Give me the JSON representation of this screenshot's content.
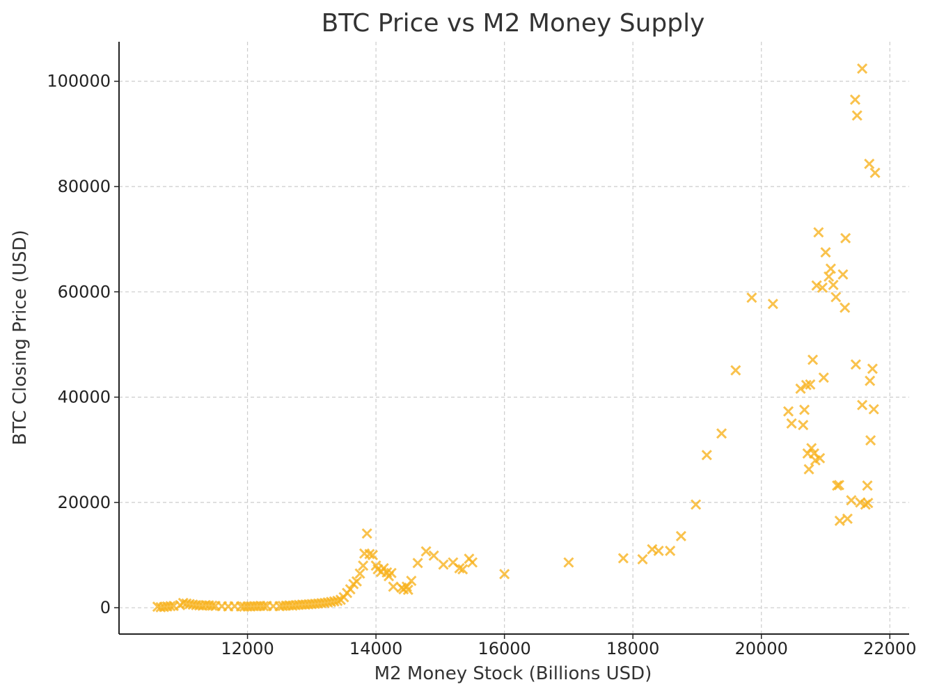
{
  "chart_data": {
    "type": "scatter",
    "title": "BTC Price vs M2 Money Supply",
    "xlabel": "M2 Money Stock (Billions USD)",
    "ylabel": "BTC Closing Price (USD)",
    "xlim": [
      10000,
      22300
    ],
    "ylim": [
      -5000,
      107500
    ],
    "xticks": [
      12000,
      14000,
      16000,
      18000,
      20000,
      22000
    ],
    "yticks": [
      0,
      20000,
      40000,
      60000,
      80000,
      100000
    ],
    "grid": true,
    "marker": "x",
    "color": "#f8b21c",
    "series": [
      {
        "points": [
          [
            10600,
            200
          ],
          [
            10650,
            100
          ],
          [
            10700,
            150
          ],
          [
            10750,
            250
          ],
          [
            10800,
            300
          ],
          [
            10850,
            350
          ],
          [
            10950,
            500
          ],
          [
            11000,
            900
          ],
          [
            11050,
            800
          ],
          [
            11100,
            700
          ],
          [
            11150,
            600
          ],
          [
            11200,
            500
          ],
          [
            11250,
            450
          ],
          [
            11300,
            400
          ],
          [
            11350,
            500
          ],
          [
            11400,
            450
          ],
          [
            11450,
            400
          ],
          [
            11500,
            350
          ],
          [
            11600,
            300
          ],
          [
            11700,
            250
          ],
          [
            11800,
            300
          ],
          [
            11900,
            250
          ],
          [
            11950,
            200
          ],
          [
            12000,
            250
          ],
          [
            12050,
            250
          ],
          [
            12100,
            300
          ],
          [
            12150,
            300
          ],
          [
            12200,
            350
          ],
          [
            12250,
            300
          ],
          [
            12300,
            350
          ],
          [
            12400,
            300
          ],
          [
            12500,
            300
          ],
          [
            12550,
            350
          ],
          [
            12600,
            400
          ],
          [
            12650,
            450
          ],
          [
            12700,
            400
          ],
          [
            12750,
            500
          ],
          [
            12800,
            550
          ],
          [
            12850,
            600
          ],
          [
            12900,
            600
          ],
          [
            12950,
            650
          ],
          [
            13000,
            700
          ],
          [
            13050,
            750
          ],
          [
            13100,
            800
          ],
          [
            13150,
            850
          ],
          [
            13200,
            900
          ],
          [
            13250,
            1000
          ],
          [
            13300,
            1100
          ],
          [
            13350,
            1200
          ],
          [
            13400,
            1300
          ],
          [
            13450,
            1500
          ],
          [
            13500,
            2000
          ],
          [
            13550,
            2800
          ],
          [
            13600,
            3500
          ],
          [
            13650,
            4500
          ],
          [
            13700,
            5000
          ],
          [
            13750,
            6500
          ],
          [
            13800,
            8000
          ],
          [
            13820,
            10300
          ],
          [
            13860,
            14100
          ],
          [
            13900,
            10200
          ],
          [
            13950,
            10000
          ],
          [
            14000,
            8000
          ],
          [
            14030,
            7300
          ],
          [
            14080,
            6800
          ],
          [
            14120,
            7500
          ],
          [
            14170,
            6700
          ],
          [
            14200,
            6000
          ],
          [
            14240,
            6600
          ],
          [
            14270,
            4000
          ],
          [
            14400,
            3800
          ],
          [
            14430,
            3500
          ],
          [
            14480,
            4000
          ],
          [
            14500,
            3400
          ],
          [
            14550,
            5100
          ],
          [
            14650,
            8500
          ],
          [
            14780,
            10700
          ],
          [
            14900,
            9900
          ],
          [
            15050,
            8200
          ],
          [
            15200,
            8600
          ],
          [
            15300,
            7500
          ],
          [
            15350,
            7300
          ],
          [
            15450,
            9300
          ],
          [
            15500,
            8600
          ],
          [
            16000,
            6400
          ],
          [
            17000,
            8600
          ],
          [
            17850,
            9400
          ],
          [
            18150,
            9200
          ],
          [
            18300,
            11100
          ],
          [
            18400,
            10800
          ],
          [
            18580,
            10800
          ],
          [
            18750,
            13600
          ],
          [
            18980,
            19600
          ],
          [
            19150,
            29000
          ],
          [
            19380,
            33100
          ],
          [
            19600,
            45100
          ],
          [
            19850,
            58900
          ],
          [
            20180,
            57700
          ],
          [
            20420,
            37300
          ],
          [
            20470,
            35000
          ],
          [
            20610,
            41600
          ],
          [
            20650,
            34700
          ],
          [
            20670,
            37600
          ],
          [
            20700,
            42300
          ],
          [
            20720,
            29300
          ],
          [
            20740,
            26300
          ],
          [
            20760,
            42400
          ],
          [
            20780,
            30300
          ],
          [
            20800,
            47100
          ],
          [
            20820,
            29300
          ],
          [
            20840,
            28000
          ],
          [
            20860,
            61200
          ],
          [
            20890,
            71300
          ],
          [
            20910,
            28400
          ],
          [
            20950,
            60800
          ],
          [
            20970,
            43700
          ],
          [
            21000,
            67500
          ],
          [
            21050,
            62900
          ],
          [
            21080,
            64400
          ],
          [
            21120,
            61300
          ],
          [
            21160,
            59000
          ],
          [
            21180,
            23200
          ],
          [
            21210,
            23300
          ],
          [
            21220,
            16500
          ],
          [
            21270,
            63300
          ],
          [
            21300,
            57000
          ],
          [
            21310,
            70200
          ],
          [
            21340,
            16900
          ],
          [
            21400,
            20400
          ],
          [
            21460,
            96500
          ],
          [
            21470,
            46200
          ],
          [
            21490,
            93500
          ],
          [
            21540,
            20000
          ],
          [
            21570,
            102400
          ],
          [
            21570,
            38500
          ],
          [
            21620,
            19600
          ],
          [
            21650,
            23200
          ],
          [
            21660,
            19900
          ],
          [
            21680,
            84300
          ],
          [
            21690,
            43100
          ],
          [
            21700,
            31800
          ],
          [
            21730,
            45400
          ],
          [
            21750,
            37700
          ],
          [
            21770,
            82600
          ]
        ]
      }
    ]
  }
}
